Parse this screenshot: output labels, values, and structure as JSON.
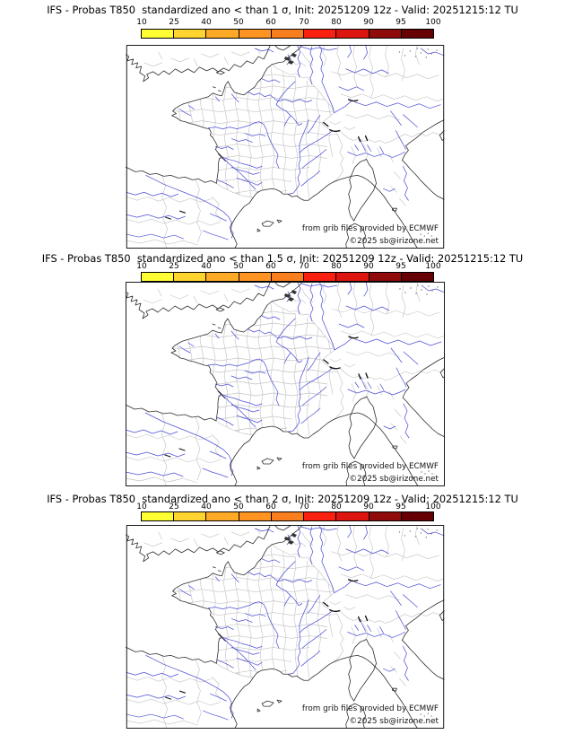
{
  "panels": [
    {
      "title": "IFS - Probas T850  standardized ano < than 1 σ, Init: 20251209 12z - Valid: 20251215:12 TU"
    },
    {
      "title": "IFS - Probas T850  standardized ano < than 1.5 σ, Init: 20251209 12z - Valid: 20251215:12 TU"
    },
    {
      "title": "IFS - Probas T850  standardized ano < than 2 σ, Init: 20251209 12z - Valid: 20251215:12 TU"
    }
  ],
  "colorbar": {
    "tick_labels": [
      "10",
      "25",
      "40",
      "50",
      "60",
      "70",
      "80",
      "90",
      "95",
      "100"
    ],
    "segment_colors": [
      "#FFFF33",
      "#FFD42E",
      "#FFAA26",
      "#FF9422",
      "#F97E1E",
      "#FA200F",
      "#DD1510",
      "#8E0A0B",
      "#660004"
    ]
  },
  "map_attribution": {
    "line1": "from grib files provided by ECMWF",
    "line2": "©2025 sb@irizone.net"
  }
}
